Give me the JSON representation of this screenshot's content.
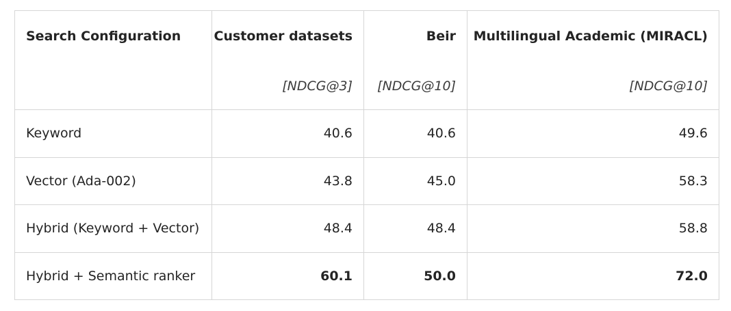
{
  "table": {
    "headers": [
      {
        "label": "Search Configuration",
        "metric": ""
      },
      {
        "label": "Customer datasets",
        "metric": "[NDCG@3]"
      },
      {
        "label": "Beir",
        "metric": "[NDCG@10]"
      },
      {
        "label": "Multilingual Academic (MIRACL)",
        "metric": "[NDCG@10]"
      }
    ],
    "rows": [
      {
        "config": "Keyword",
        "customer": "40.6",
        "beir": "40.6",
        "miracl": "49.6",
        "bold": false
      },
      {
        "config": "Vector (Ada-002)",
        "customer": "43.8",
        "beir": "45.0",
        "miracl": "58.3",
        "bold": false
      },
      {
        "config": "Hybrid (Keyword + Vector)",
        "customer": "48.4",
        "beir": "48.4",
        "miracl": "58.8",
        "bold": false
      },
      {
        "config": "Hybrid + Semantic ranker",
        "customer": "60.1",
        "beir": "50.0",
        "miracl": "72.0",
        "bold": true
      }
    ]
  }
}
